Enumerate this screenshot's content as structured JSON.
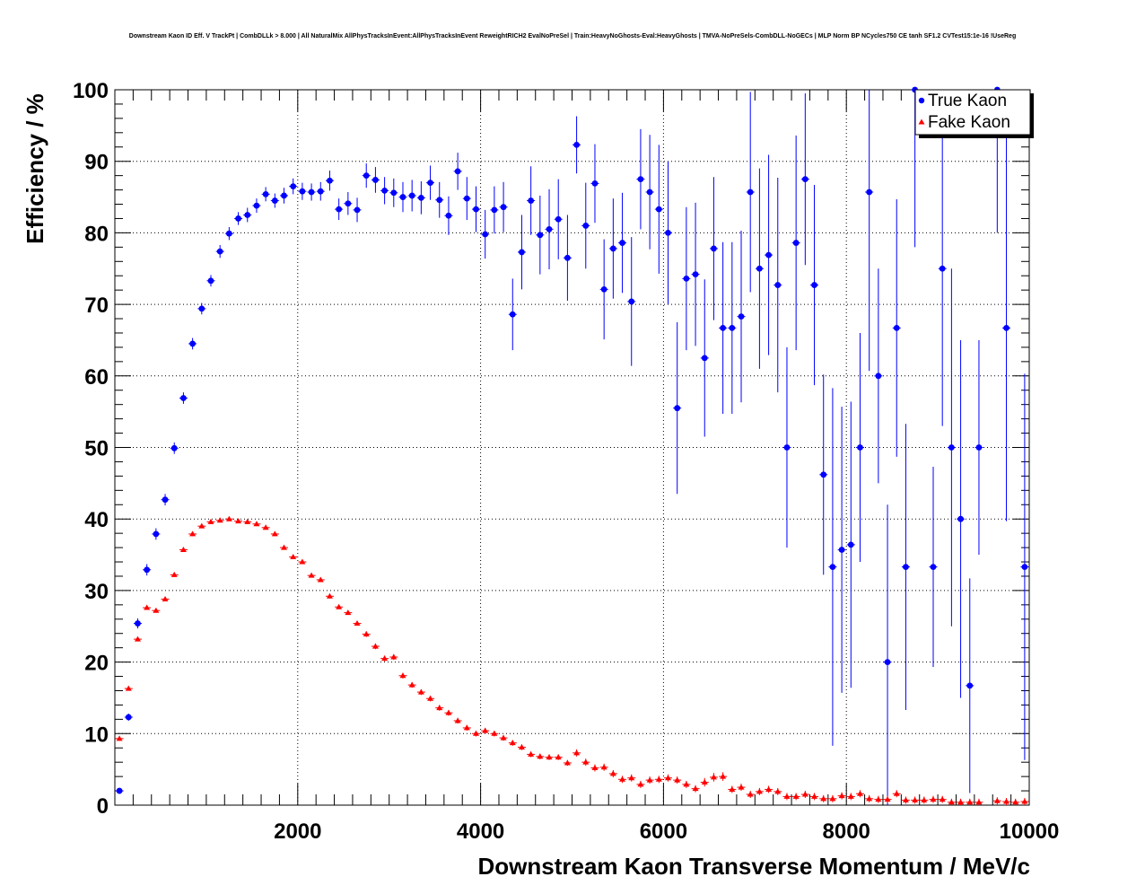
{
  "chart_data": {
    "type": "scatter",
    "title": "Downstream Kaon ID Eff. V TrackPt | CombDLLk > 8.000 | All NaturalMix AllPhysTracksInEvent:AllPhysTracksInEvent ReweightRICH2 EvalNoPreSel | Train:HeavyNoGhosts-Eval:HeavyGhosts | TMVA-NoPreSels-CombDLL-NoGECs | MLP Norm BP NCycles750 CE tanh SF1.2 CVTest15:1e-16 !UseReg",
    "xlabel": "Downstream Kaon Transverse Momentum / MeV/c",
    "ylabel": "Efficiency / %",
    "xlim": [
      0,
      10000
    ],
    "ylim": [
      0,
      100
    ],
    "x_ticks": [
      "2000",
      "4000",
      "6000",
      "8000",
      "10000"
    ],
    "y_ticks": [
      "0",
      "10",
      "20",
      "30",
      "40",
      "50",
      "60",
      "70",
      "80",
      "90",
      "100"
    ],
    "grid": true,
    "legend_position": "top-right",
    "series": [
      {
        "name": "True Kaon",
        "color": "#0000ff",
        "marker": "circle",
        "x": [
          50,
          150,
          250,
          350,
          450,
          550,
          650,
          750,
          850,
          950,
          1050,
          1150,
          1250,
          1350,
          1450,
          1550,
          1650,
          1750,
          1850,
          1950,
          2050,
          2150,
          2250,
          2350,
          2450,
          2550,
          2650,
          2750,
          2850,
          2950,
          3050,
          3150,
          3250,
          3350,
          3450,
          3550,
          3650,
          3750,
          3850,
          3950,
          4050,
          4150,
          4250,
          4350,
          4450,
          4550,
          4650,
          4750,
          4850,
          4950,
          5050,
          5150,
          5250,
          5350,
          5450,
          5550,
          5650,
          5750,
          5850,
          5950,
          6050,
          6150,
          6250,
          6350,
          6450,
          6550,
          6650,
          6750,
          6850,
          6950,
          7050,
          7150,
          7250,
          7350,
          7450,
          7550,
          7650,
          7750,
          7850,
          7950,
          8050,
          8150,
          8250,
          8350,
          8450,
          8550,
          8650,
          8750,
          8950,
          9050,
          9150,
          9250,
          9350,
          9450,
          9650,
          9750,
          9950
        ],
        "y": [
          2,
          12.3,
          25.4,
          32.9,
          37.9,
          42.7,
          49.9,
          56.9,
          64.5,
          69.4,
          73.3,
          77.4,
          79.9,
          82,
          82.5,
          83.8,
          85.4,
          84.5,
          85.2,
          86.5,
          85.8,
          85.7,
          85.8,
          87.3,
          83.3,
          84.1,
          83.2,
          88,
          87.4,
          85.9,
          85.6,
          85,
          85.2,
          84.9,
          87,
          84.6,
          82.4,
          88.6,
          84.8,
          83.3,
          79.8,
          83.2,
          83.6,
          68.6,
          77.3,
          84.5,
          79.7,
          80.5,
          81.9,
          76.5,
          92.3,
          81,
          86.9,
          72.1,
          77.8,
          78.6,
          70.4,
          87.5,
          85.7,
          83.3,
          80,
          55.5,
          73.6,
          74.2,
          62.5,
          77.8,
          66.7,
          66.7,
          68.3,
          85.7,
          75,
          76.9,
          72.7,
          50,
          78.6,
          87.5,
          72.7,
          46.2,
          33.3,
          35.7,
          36.4,
          50,
          85.7,
          60,
          20,
          66.7,
          33.3,
          100,
          33.3,
          75,
          50,
          40,
          16.7,
          50,
          100,
          66.7,
          33.3
        ],
        "y_err": [
          0.2,
          0.5,
          0.7,
          0.8,
          0.8,
          0.8,
          0.8,
          0.8,
          0.8,
          0.8,
          0.8,
          0.9,
          0.9,
          0.9,
          1,
          1,
          1,
          1,
          1.1,
          1.1,
          1.2,
          1.2,
          1.3,
          1.4,
          1.5,
          1.6,
          1.7,
          1.7,
          1.8,
          1.9,
          2,
          2.1,
          2.2,
          2.3,
          2.4,
          2.5,
          2.7,
          2.6,
          3,
          3.2,
          3.4,
          3.3,
          3.5,
          5,
          5.2,
          4.8,
          5.5,
          5.6,
          5.6,
          6,
          4,
          6,
          5.5,
          7,
          7,
          7,
          9,
          7,
          8,
          9,
          10,
          12,
          10,
          10,
          11,
          10,
          12,
          12,
          12,
          14,
          14,
          14,
          15,
          14,
          15,
          12,
          14,
          14,
          25,
          20,
          20,
          16,
          25,
          15,
          22,
          18,
          20,
          22,
          14,
          22,
          25,
          25,
          15,
          15,
          20,
          27,
          27
        ]
      },
      {
        "name": "Fake Kaon",
        "color": "#ff0000",
        "marker": "triangle",
        "x": [
          50,
          150,
          250,
          350,
          450,
          550,
          650,
          750,
          850,
          950,
          1050,
          1150,
          1250,
          1350,
          1450,
          1550,
          1650,
          1750,
          1850,
          1950,
          2050,
          2150,
          2250,
          2350,
          2450,
          2550,
          2650,
          2750,
          2850,
          2950,
          3050,
          3150,
          3250,
          3350,
          3450,
          3550,
          3650,
          3750,
          3850,
          3950,
          4050,
          4150,
          4250,
          4350,
          4450,
          4550,
          4650,
          4750,
          4850,
          4950,
          5050,
          5150,
          5250,
          5350,
          5450,
          5550,
          5650,
          5750,
          5850,
          5950,
          6050,
          6150,
          6250,
          6350,
          6450,
          6550,
          6650,
          6750,
          6850,
          6950,
          7050,
          7150,
          7250,
          7350,
          7450,
          7550,
          7650,
          7750,
          7850,
          7950,
          8050,
          8150,
          8250,
          8350,
          8450,
          8550,
          8650,
          8750,
          8850,
          8950,
          9050,
          9150,
          9250,
          9350,
          9450,
          9650,
          9750,
          9850,
          9950
        ],
        "y": [
          9.3,
          16.3,
          23.2,
          27.6,
          27.2,
          28.8,
          32.2,
          35.7,
          37.9,
          39,
          39.6,
          39.8,
          40,
          39.7,
          39.6,
          39.3,
          38.8,
          37.9,
          36,
          34.7,
          34,
          32.1,
          31.5,
          29.2,
          27.7,
          26.9,
          25.4,
          23.9,
          22.2,
          20.5,
          20.7,
          18.1,
          16.8,
          15.8,
          14.9,
          13.6,
          12.9,
          11.8,
          10.8,
          10,
          10.4,
          10,
          9.4,
          8.7,
          8.1,
          7.1,
          6.8,
          6.7,
          6.7,
          5.9,
          7.3,
          6,
          5.2,
          5.3,
          4.4,
          3.6,
          3.8,
          2.9,
          3.5,
          3.6,
          3.8,
          3.5,
          2.9,
          2.3,
          3.2,
          3.9,
          4,
          2.2,
          2.5,
          1.5,
          1.9,
          2.2,
          1.9,
          1.2,
          1.2,
          1.5,
          1.2,
          0.9,
          0.9,
          1.3,
          1.2,
          1.6,
          0.9,
          0.8,
          0.8,
          1.6,
          0.7,
          0.7,
          0.7,
          0.8,
          0.8,
          0.4,
          0.4,
          0.4,
          0.4,
          0.6,
          0.5,
          0.4,
          0.5
        ],
        "y_err": [
          0.3,
          0.3,
          0.3,
          0.3,
          0.3,
          0.3,
          0.3,
          0.3,
          0.3,
          0.3,
          0.3,
          0.3,
          0.3,
          0.3,
          0.3,
          0.3,
          0.3,
          0.3,
          0.3,
          0.3,
          0.3,
          0.3,
          0.3,
          0.3,
          0.3,
          0.3,
          0.3,
          0.4,
          0.4,
          0.4,
          0.4,
          0.4,
          0.4,
          0.4,
          0.4,
          0.4,
          0.4,
          0.4,
          0.4,
          0.4,
          0.4,
          0.4,
          0.4,
          0.4,
          0.4,
          0.4,
          0.4,
          0.4,
          0.4,
          0.4,
          0.5,
          0.5,
          0.5,
          0.5,
          0.5,
          0.5,
          0.5,
          0.5,
          0.5,
          0.5,
          0.5,
          0.5,
          0.5,
          0.5,
          0.6,
          0.6,
          0.6,
          0.5,
          0.5,
          0.5,
          0.5,
          0.5,
          0.5,
          0.5,
          0.5,
          0.5,
          0.5,
          0.5,
          0.5,
          0.5,
          0.5,
          0.5,
          0.5,
          0.5,
          0.5,
          0.5,
          0.5,
          0.5,
          0.5,
          0.5,
          0.5,
          0.5,
          0.5,
          0.5,
          0.5,
          0.5,
          0.5,
          0.5,
          0.5
        ]
      }
    ]
  }
}
